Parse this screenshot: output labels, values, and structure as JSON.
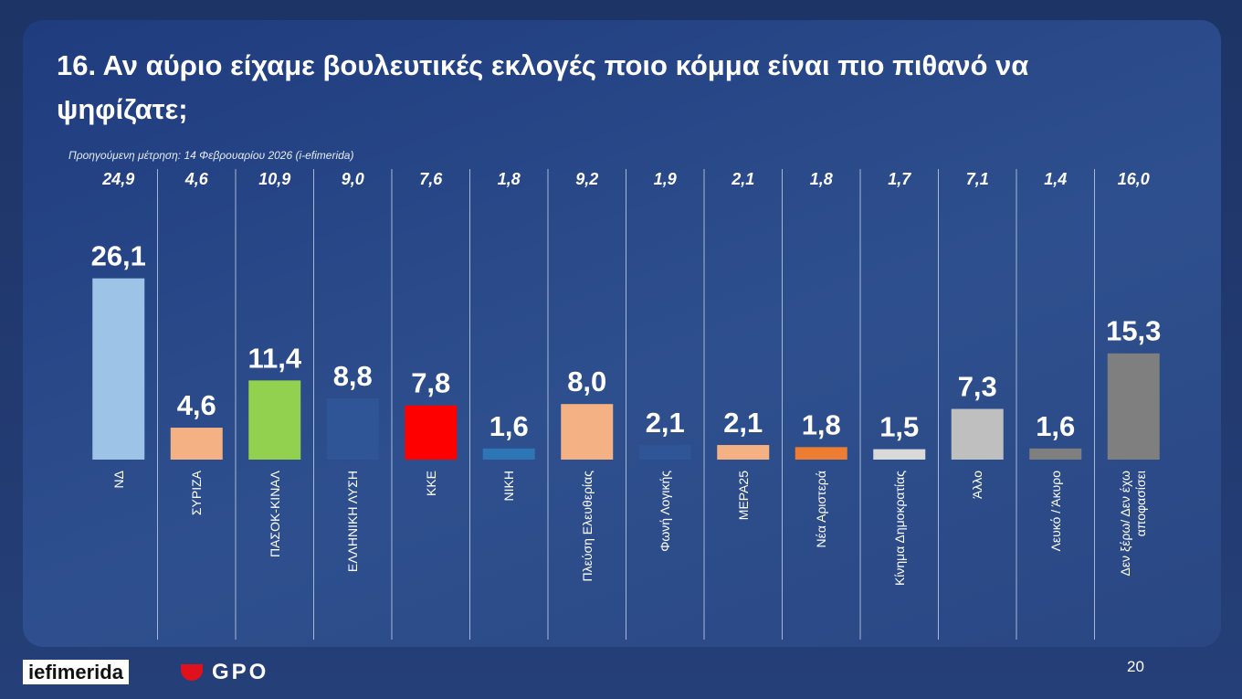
{
  "chart_data": {
    "type": "bar",
    "title": "16. Αν αύριο είχαμε βουλευτικές εκλογές ποιο κόμμα είναι πιο πιθανό να ψηφίζατε;",
    "note": "Προηγούμενη μέτρηση: 14 Φεβρουαρίου 2026 (i-efimerida)",
    "categories": [
      "ΝΔ",
      "ΣΥΡΙΖΑ",
      "ΠΑΣΟΚ-ΚΙΝΑΛ",
      "ΕΛΛΗΝΙΚΗ ΛΥΣΗ",
      "ΚΚΕ",
      "ΝΙΚΗ",
      "Πλεύση Ελευθερίας",
      "Φωνή Λογικής",
      "ΜΕΡΑ25",
      "Νέα Αριστερά",
      "Κίνημα Δημοκρατίας",
      "Άλλο",
      "Λευκό / Άκυρο",
      "Δεν ξέρω/ Δεν έχω αποφασίσει"
    ],
    "values": [
      26.1,
      4.6,
      11.4,
      8.8,
      7.8,
      1.6,
      8.0,
      2.1,
      2.1,
      1.8,
      1.5,
      7.3,
      1.6,
      15.3
    ],
    "value_labels": [
      "26,1",
      "4,6",
      "11,4",
      "8,8",
      "7,8",
      "1,6",
      "8,0",
      "2,1",
      "2,1",
      "1,8",
      "1,5",
      "7,3",
      "1,6",
      "15,3"
    ],
    "colors": [
      "#9dc3e6",
      "#f4b183",
      "#92d050",
      "#2f5597",
      "#ff0000",
      "#2e75b6",
      "#f4b183",
      "#2f5597",
      "#f4b183",
      "#ed7d31",
      "#d9d9d9",
      "#bfbfbf",
      "#7f7f7f",
      "#7f7f7f"
    ],
    "previous_values": [
      24.9,
      4.6,
      10.9,
      9.0,
      7.6,
      1.8,
      9.2,
      1.9,
      2.1,
      1.8,
      1.7,
      7.1,
      1.4,
      16.0
    ],
    "previous_labels": [
      "24,9",
      "4,6",
      "10,9",
      "9,0",
      "7,6",
      "1,8",
      "9,2",
      "1,9",
      "2,1",
      "1,8",
      "1,7",
      "7,1",
      "1,4",
      "16,0"
    ]
  },
  "footer": {
    "logo": "iefimerida",
    "partner": "GPO",
    "page": "20"
  }
}
